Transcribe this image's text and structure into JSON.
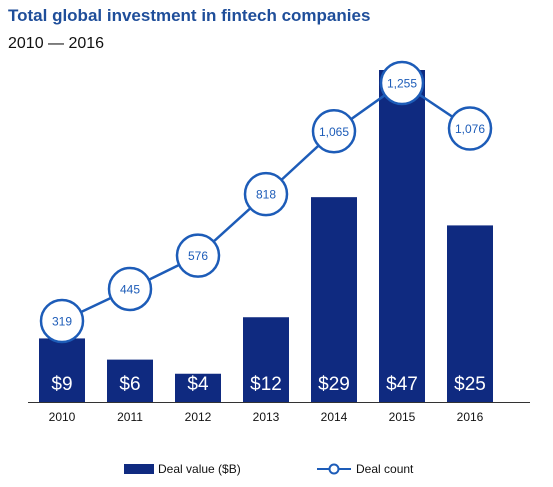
{
  "title": "Total global investment in fintech companies",
  "subtitle": "2010 — 2016",
  "colors": {
    "bar": "#0f2a80",
    "line": "#1d5cb8",
    "marker_fill": "#ffffff",
    "bar_label": "#ffffff",
    "axis": "#333333"
  },
  "chart_data": {
    "type": "bar",
    "categories": [
      "2010",
      "2011",
      "2012",
      "2013",
      "2014",
      "2015",
      "2016"
    ],
    "series": [
      {
        "name": "Deal value ($B)",
        "type": "bar",
        "values": [
          9,
          6,
          4,
          12,
          29,
          47,
          25
        ],
        "labels": [
          "$9",
          "$6",
          "$4",
          "$12",
          "$29",
          "$47",
          "$25"
        ]
      },
      {
        "name": "Deal count",
        "type": "line",
        "values": [
          319,
          445,
          576,
          818,
          1065,
          1255,
          1076
        ],
        "labels": [
          "319",
          "445",
          "576",
          "818",
          "1,065",
          "1,255",
          "1,076"
        ]
      }
    ],
    "ylim_value": [
      0,
      47
    ],
    "ylim_count": [
      319,
      1255
    ],
    "grid": false,
    "legend": "bottom"
  }
}
